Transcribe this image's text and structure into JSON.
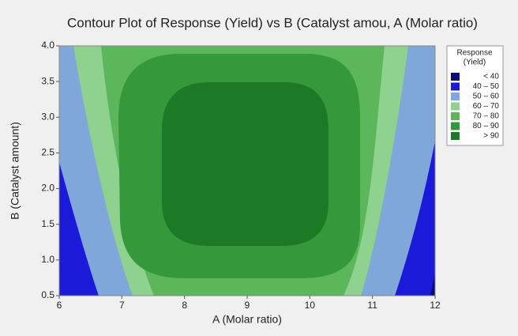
{
  "chart_data": {
    "type": "contour",
    "title": "Contour Plot of Response (Yield) vs B (Catalyst amou, A (Molar ratio)",
    "x_label": "A (Molar ratio)",
    "y_label": "B (Catalyst amount)",
    "xlim": [
      6,
      12
    ],
    "xticks": [
      6,
      7,
      8,
      9,
      10,
      11,
      12
    ],
    "ylim": [
      0.5,
      4.0
    ],
    "yticks": [
      0.5,
      {
        "value": 1,
        "label": "1.0"
      },
      1.5,
      {
        "value": 2,
        "label": "2.0"
      },
      2.5,
      {
        "value": 3,
        "label": "3.0"
      },
      3.5,
      {
        "value": 4,
        "label": "4.0"
      }
    ],
    "legend": {
      "title_lines": [
        "Response",
        "(Yield)"
      ],
      "entries": [
        {
          "label": "< 40",
          "color": "#0b0b78"
        },
        {
          "label": "40 – 50",
          "color": "#1a1ad8"
        },
        {
          "label": "50 – 60",
          "color": "#7fa7d9"
        },
        {
          "label": "60 – 70",
          "color": "#8fd18e"
        },
        {
          "label": "70 – 80",
          "color": "#5cb65a"
        },
        {
          "label": "80 – 90",
          "color": "#35983a"
        },
        {
          "label": "> 90",
          "color": "#1c7a26"
        }
      ]
    }
  }
}
